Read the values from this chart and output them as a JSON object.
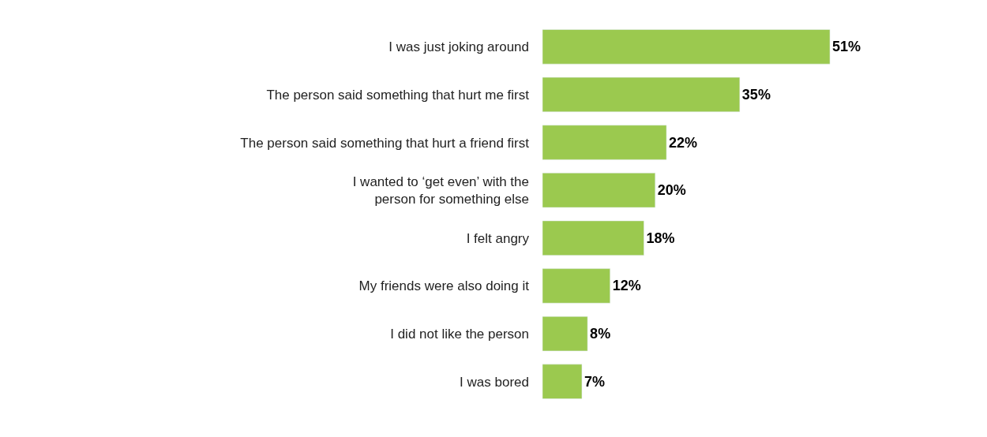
{
  "chart_data": {
    "type": "bar",
    "orientation": "horizontal",
    "categories": [
      "I was just joking around",
      "The person said something that hurt me first",
      "The person said something that hurt a friend first",
      "I wanted to ‘get even’ with the\nperson for something else",
      "I felt angry",
      "My friends were also doing it",
      "I did not like the person",
      "I was bored"
    ],
    "values": [
      51,
      35,
      22,
      20,
      18,
      12,
      8,
      7
    ],
    "value_labels": [
      "51%",
      "35%",
      "22%",
      "20%",
      "18%",
      "12%",
      "8%",
      "7%"
    ],
    "color": "#9bc94f",
    "legend": false
  }
}
